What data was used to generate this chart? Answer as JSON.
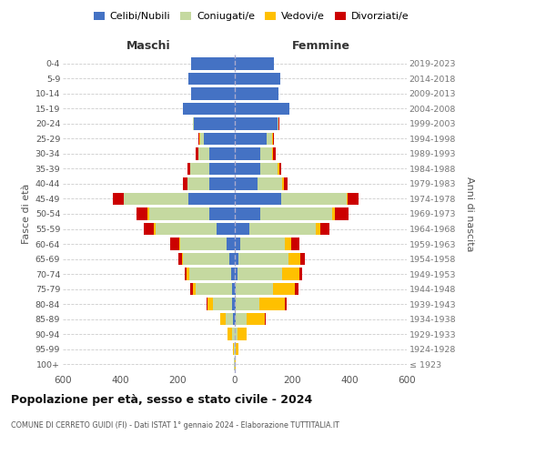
{
  "age_groups": [
    "100+",
    "95-99",
    "90-94",
    "85-89",
    "80-84",
    "75-79",
    "70-74",
    "65-69",
    "60-64",
    "55-59",
    "50-54",
    "45-49",
    "40-44",
    "35-39",
    "30-34",
    "25-29",
    "20-24",
    "15-19",
    "10-14",
    "5-9",
    "0-4"
  ],
  "birth_years": [
    "≤ 1923",
    "1924-1928",
    "1929-1933",
    "1934-1938",
    "1939-1943",
    "1944-1948",
    "1949-1953",
    "1954-1958",
    "1959-1963",
    "1964-1968",
    "1969-1973",
    "1974-1978",
    "1979-1983",
    "1984-1988",
    "1989-1993",
    "1994-1998",
    "1999-2003",
    "2004-2008",
    "2009-2013",
    "2014-2018",
    "2019-2023"
  ],
  "males": {
    "celibi": [
      0,
      0,
      0,
      5,
      8,
      10,
      12,
      18,
      28,
      65,
      88,
      162,
      88,
      88,
      90,
      108,
      143,
      182,
      152,
      163,
      152
    ],
    "coniugati": [
      2,
      3,
      8,
      28,
      68,
      128,
      148,
      162,
      162,
      212,
      212,
      225,
      78,
      68,
      38,
      12,
      4,
      0,
      0,
      0,
      0
    ],
    "vedovi": [
      0,
      4,
      18,
      18,
      18,
      8,
      8,
      4,
      4,
      4,
      4,
      0,
      0,
      0,
      0,
      4,
      0,
      0,
      0,
      0,
      0
    ],
    "divorziati": [
      0,
      0,
      0,
      0,
      4,
      8,
      8,
      14,
      32,
      38,
      38,
      38,
      14,
      8,
      8,
      4,
      0,
      0,
      0,
      0,
      0
    ]
  },
  "females": {
    "nubili": [
      0,
      0,
      0,
      4,
      4,
      4,
      8,
      14,
      18,
      52,
      88,
      162,
      78,
      88,
      88,
      112,
      148,
      192,
      152,
      158,
      138
    ],
    "coniugate": [
      0,
      4,
      8,
      38,
      82,
      128,
      158,
      172,
      158,
      232,
      252,
      228,
      88,
      62,
      42,
      18,
      4,
      0,
      0,
      0,
      0
    ],
    "vedove": [
      4,
      8,
      33,
      62,
      88,
      78,
      58,
      42,
      22,
      14,
      8,
      4,
      4,
      4,
      4,
      4,
      0,
      0,
      0,
      0,
      0
    ],
    "divorziate": [
      0,
      0,
      0,
      4,
      8,
      12,
      12,
      18,
      28,
      32,
      48,
      38,
      14,
      8,
      8,
      4,
      4,
      0,
      0,
      0,
      0
    ]
  },
  "colors": {
    "celibi": "#4472c4",
    "coniugati": "#c5d9a0",
    "vedovi": "#ffc000",
    "divorziati": "#cc0000"
  },
  "legend_labels": [
    "Celibi/Nubili",
    "Coniugati/e",
    "Vedovi/e",
    "Divorziati/e"
  ],
  "title": "Popolazione per età, sesso e stato civile - 2024",
  "subtitle": "COMUNE DI CERRETO GUIDI (FI) - Dati ISTAT 1° gennaio 2024 - Elaborazione TUTTITALIA.IT",
  "xlabel_left": "Maschi",
  "xlabel_right": "Femmine",
  "ylabel_left": "Fasce di età",
  "ylabel_right": "Anni di nascita",
  "xlim": 600,
  "bg_color": "#ffffff",
  "grid_color": "#cccccc"
}
